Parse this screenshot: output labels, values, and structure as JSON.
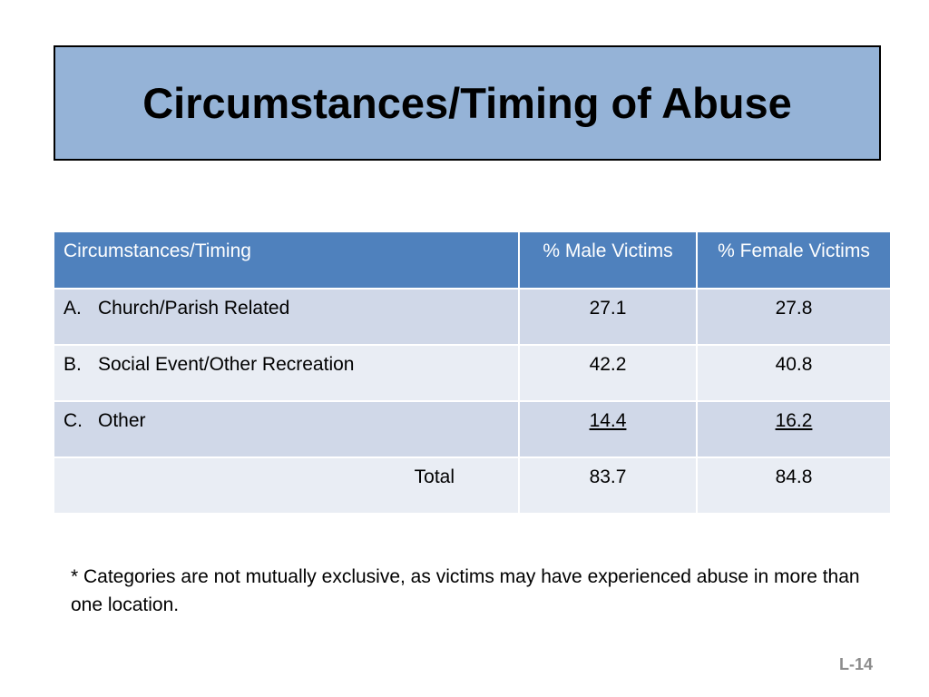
{
  "title": "Circumstances/Timing of Abuse",
  "table": {
    "headers": [
      "Circumstances/Timing",
      "% Male Victims",
      "% Female Victims"
    ],
    "rows": [
      {
        "marker": "A.",
        "label": "Church/Parish Related",
        "male": "27.1",
        "female": "27.8"
      },
      {
        "marker": "B.",
        "label": "Social Event/Other Recreation",
        "male": "42.2",
        "female": "40.8"
      },
      {
        "marker": "C.",
        "label": "Other",
        "male": "14.4",
        "female": "16.2"
      }
    ],
    "total": {
      "label": "Total",
      "male": "83.7",
      "female": "84.8"
    }
  },
  "footnote": "* Categories are not mutually exclusive, as victims may have experienced abuse in more than one location.",
  "slide_number": "L-14",
  "colors": {
    "title_bg": "#95b3d7",
    "header_bg": "#4f81bd",
    "row_dark": "#d0d8e8",
    "row_light": "#e9edf4"
  }
}
